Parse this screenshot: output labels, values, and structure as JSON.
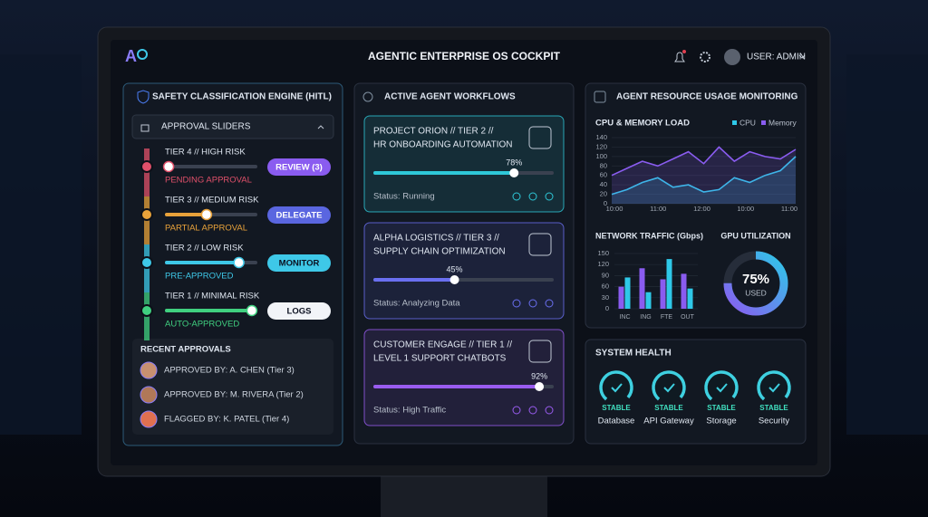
{
  "header": {
    "title": "AGENTIC ENTERPRISE OS COCKPIT",
    "user": "USER: ADMIN"
  },
  "safety": {
    "title": "SAFETY CLASSIFICATION ENGINE (HITL)",
    "sliders_title": "APPROVAL SLIDERS",
    "tiers": [
      {
        "label": "TIER 4 // HIGH RISK",
        "status": "PENDING APPROVAL",
        "action": "REVIEW (3)",
        "level": 4,
        "color": "#e0506a",
        "button_color": "#8a5cf0"
      },
      {
        "label": "TIER 3 // MEDIUM RISK",
        "status": "PARTIAL APPROVAL",
        "action": "DELEGATE",
        "level": 45,
        "color": "#e8a23a",
        "button_color": "#5a66e0"
      },
      {
        "label": "TIER 2 // LOW RISK",
        "status": "PRE-APPROVED",
        "action": "MONITOR",
        "level": 80,
        "color": "#3ec8e8",
        "button_color": "#3ec8e8"
      },
      {
        "label": "TIER 1 // MINIMAL RISK",
        "status": "AUTO-APPROVED",
        "action": "LOGS",
        "level": 94,
        "color": "#40d080",
        "button_color": "#f2f4f8"
      }
    ],
    "recent_title": "RECENT APPROVALS",
    "recent": [
      "APPROVED BY: A. CHEN (Tier 3)",
      "APPROVED BY: M. RIVERA (Tier 2)",
      "FLAGGED BY: K. PATEL (Tier 4)"
    ]
  },
  "workflows": {
    "title": "ACTIVE AGENT WORKFLOWS",
    "cards": [
      {
        "title": [
          "PROJECT ORION // TIER 2 //",
          "HR ONBOARDING AUTOMATION"
        ],
        "progress": 78,
        "progress_label": "78%",
        "status": "Status: Running",
        "color": "#2ec8d8"
      },
      {
        "title": [
          "ALPHA LOGISTICS // TIER 3 //",
          "SUPPLY CHAIN OPTIMIZATION"
        ],
        "progress": 45,
        "progress_label": "45%",
        "status": "Status: Analyzing Data",
        "color": "#6a6ff0"
      },
      {
        "title": [
          "CUSTOMER ENGAGE // TIER 1 //",
          "LEVEL 1 SUPPORT CHATBOTS"
        ],
        "progress": 92,
        "progress_label": "92%",
        "status": "Status: High Traffic",
        "color": "#9a5cf0"
      }
    ]
  },
  "resources": {
    "title": "AGENT RESOURCE USAGE MONITORING",
    "cpu_chart": {
      "type": "line",
      "title": "CPU & MEMORY LOAD",
      "x_labels": [
        "10:00",
        "11:00",
        "12:00",
        "10:00",
        "11:00"
      ],
      "ylim": [
        0,
        140
      ],
      "yticks": [
        0,
        20,
        40,
        60,
        80,
        100,
        120,
        140
      ],
      "series": [
        {
          "name": "CPU",
          "color": "#2ec8e8",
          "values": [
            20,
            30,
            45,
            55,
            35,
            40,
            25,
            30,
            55,
            45,
            60,
            70,
            100
          ]
        },
        {
          "name": "Memory",
          "color": "#8a5cf0",
          "values": [
            60,
            75,
            90,
            80,
            95,
            110,
            85,
            120,
            90,
            110,
            100,
            95,
            115
          ]
        }
      ]
    },
    "network_chart": {
      "type": "bar",
      "title": "NETWORK TRAFFIC (Gbps)",
      "categories": [
        "INC",
        "ING",
        "FTE",
        "OUT"
      ],
      "ylim": [
        0,
        150
      ],
      "yticks": [
        0,
        30,
        60,
        90,
        120,
        150
      ],
      "series": [
        {
          "color": "#8a5cf0",
          "values": [
            60,
            110,
            80,
            95
          ]
        },
        {
          "color": "#2ec8e8",
          "values": [
            85,
            45,
            135,
            55
          ]
        }
      ]
    },
    "gpu": {
      "title": "GPU UTILIZATION",
      "value": 75,
      "value_label": "75%",
      "caption": "USED"
    }
  },
  "health": {
    "title": "SYSTEM HEALTH",
    "items": [
      {
        "status": "STABLE",
        "name": "Database"
      },
      {
        "status": "STABLE",
        "name": "API Gateway"
      },
      {
        "status": "STABLE",
        "name": "Storage"
      },
      {
        "status": "STABLE",
        "name": "Security"
      }
    ]
  }
}
